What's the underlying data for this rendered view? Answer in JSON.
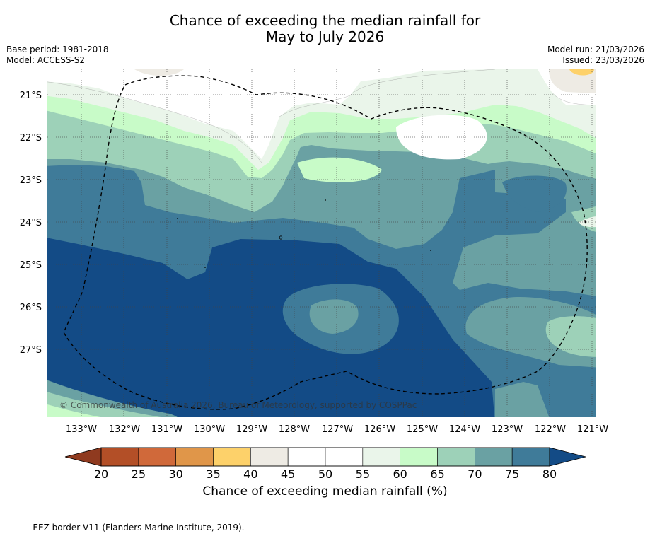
{
  "title": {
    "line1": "Chance of exceeding the median rainfall for",
    "line2": "May to July 2026"
  },
  "meta": {
    "base_period": "Base period: 1981-2018",
    "model": "Model: ACCESS-S2",
    "model_run": "Model run: 21/03/2026",
    "issued": "Issued: 23/03/2026"
  },
  "map": {
    "copyright": "© Commonwealth of Australia 2026, Bureau of Meteorology, supported by COSPPac",
    "lat_labels": [
      "21°S",
      "22°S",
      "23°S",
      "24°S",
      "25°S",
      "26°S",
      "27°S"
    ],
    "lon_labels": [
      "133°W",
      "132°W",
      "131°W",
      "130°W",
      "129°W",
      "128°W",
      "127°W",
      "126°W",
      "125°W",
      "124°W",
      "123°W",
      "122°W",
      "121°W"
    ]
  },
  "colorbar": {
    "ticks": [
      "20",
      "25",
      "30",
      "35",
      "40",
      "45",
      "50",
      "55",
      "60",
      "65",
      "70",
      "75",
      "80"
    ],
    "colors": [
      "#b34f27",
      "#d0693a",
      "#e09649",
      "#fdd16a",
      "#eeebe4",
      "#ffffff",
      "#ffffff",
      "#eaf5ea",
      "#c8fbc8",
      "#9dd1b8",
      "#6aa1a3",
      "#3f7b99"
    ],
    "under_color": "#8f3a1f",
    "over_color": "#134b86",
    "label": "Chance of exceeding median rainfall (%)"
  },
  "footnote": "-- -- -- EEZ border V11 (Flanders Marine Institute, 2019)."
}
